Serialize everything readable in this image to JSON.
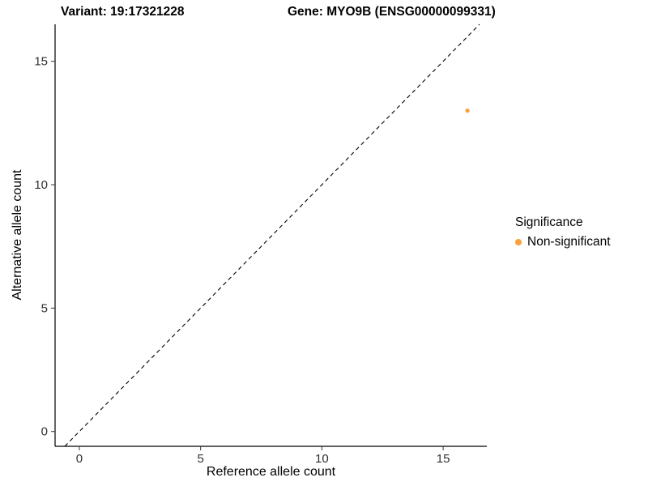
{
  "chart_data": {
    "type": "scatter",
    "title_left": "Variant: 19:17321228",
    "title_right": "Gene: MYO9B (ENSG00000099331)",
    "xlabel": "Reference allele count",
    "ylabel": "Alternative allele count",
    "xlim": [
      -1.0,
      16.8
    ],
    "ylim": [
      -0.6,
      16.5
    ],
    "xticks": [
      0,
      5,
      10,
      15
    ],
    "yticks": [
      0,
      5,
      10,
      15
    ],
    "grid": false,
    "identity_line": {
      "style": "dashed",
      "color": "#000000",
      "equation": "y = x"
    },
    "series": [
      {
        "name": "Non-significant",
        "color": "#f9a13b",
        "points": [
          [
            16,
            13
          ]
        ]
      }
    ],
    "legend": {
      "title": "Significance",
      "position": "right",
      "entries": [
        {
          "label": "Non-significant",
          "color": "#f9a13b"
        }
      ]
    }
  }
}
